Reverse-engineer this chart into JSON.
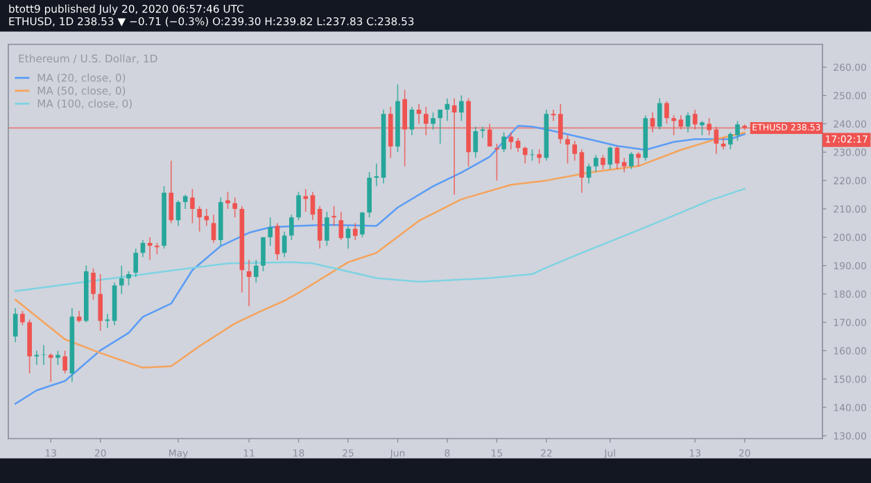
{
  "chart_data": {
    "type": "candlestick",
    "title": "btott9 published July 20, 2020 06:57:46 UTC",
    "subtitle": "ETHUSD, 1D 238.53 ▼ −0.71 (−0.3%) O:239.30 H:239.82 L:237.83 C:238.53",
    "annotations": [
      "Ethereum / U.S. Dollar, 1D",
      "17:02:17"
    ],
    "x": [
      "2020-04-08",
      "2020-04-09",
      "2020-04-10",
      "2020-04-11",
      "2020-04-12",
      "2020-04-13",
      "2020-04-14",
      "2020-04-15",
      "2020-04-16",
      "2020-04-17",
      "2020-04-18",
      "2020-04-19",
      "2020-04-20",
      "2020-04-21",
      "2020-04-22",
      "2020-04-23",
      "2020-04-24",
      "2020-04-25",
      "2020-04-26",
      "2020-04-27",
      "2020-04-28",
      "2020-04-29",
      "2020-04-30",
      "2020-05-01",
      "2020-05-02",
      "2020-05-03",
      "2020-05-04",
      "2020-05-05",
      "2020-05-06",
      "2020-05-07",
      "2020-05-08",
      "2020-05-09",
      "2020-05-10",
      "2020-05-11",
      "2020-05-12",
      "2020-05-13",
      "2020-05-14",
      "2020-05-15",
      "2020-05-16",
      "2020-05-17",
      "2020-05-18",
      "2020-05-19",
      "2020-05-20",
      "2020-05-21",
      "2020-05-22",
      "2020-05-23",
      "2020-05-24",
      "2020-05-25",
      "2020-05-26",
      "2020-05-27",
      "2020-05-28",
      "2020-05-29",
      "2020-05-30",
      "2020-05-31",
      "2020-06-01",
      "2020-06-02",
      "2020-06-03",
      "2020-06-04",
      "2020-06-05",
      "2020-06-06",
      "2020-06-07",
      "2020-06-08",
      "2020-06-09",
      "2020-06-10",
      "2020-06-11",
      "2020-06-12",
      "2020-06-13",
      "2020-06-14",
      "2020-06-15",
      "2020-06-16",
      "2020-06-17",
      "2020-06-18",
      "2020-06-19",
      "2020-06-20",
      "2020-06-21",
      "2020-06-22",
      "2020-06-23",
      "2020-06-24",
      "2020-06-25",
      "2020-06-26",
      "2020-06-27",
      "2020-06-28",
      "2020-06-29",
      "2020-06-30",
      "2020-07-01",
      "2020-07-02",
      "2020-07-03",
      "2020-07-04",
      "2020-07-05",
      "2020-07-06",
      "2020-07-07",
      "2020-07-08",
      "2020-07-09",
      "2020-07-10",
      "2020-07-11",
      "2020-07-12",
      "2020-07-13",
      "2020-07-14",
      "2020-07-15",
      "2020-07-16",
      "2020-07-17",
      "2020-07-18",
      "2020-07-19",
      "2020-07-20"
    ],
    "ohlc": [
      [
        165,
        175,
        163,
        173
      ],
      [
        173,
        174,
        169,
        170
      ],
      [
        170,
        171,
        152,
        158
      ],
      [
        158,
        160,
        155,
        158.5
      ],
      [
        158.5,
        162,
        155,
        158.5
      ],
      [
        158.5,
        159,
        149,
        157.5
      ],
      [
        157.5,
        160,
        155,
        158.5
      ],
      [
        158,
        160,
        152,
        153
      ],
      [
        152,
        175,
        149,
        172
      ],
      [
        172,
        174,
        170,
        170.5
      ],
      [
        170.5,
        190,
        170,
        188
      ],
      [
        187.5,
        189,
        178,
        180
      ],
      [
        180,
        187,
        167,
        170.5
      ],
      [
        170.5,
        173,
        168,
        171
      ],
      [
        170.5,
        184,
        169,
        183
      ],
      [
        183,
        190,
        180,
        185.5
      ],
      [
        185.5,
        188,
        183,
        187
      ],
      [
        187.5,
        196,
        186,
        194.5
      ],
      [
        194.5,
        199,
        193,
        198
      ],
      [
        198,
        200,
        192,
        197
      ],
      [
        197,
        198,
        194,
        196.5
      ],
      [
        197,
        218,
        196,
        215.7
      ],
      [
        215.7,
        227,
        205,
        206
      ],
      [
        206,
        213,
        204,
        212.4
      ],
      [
        212.4,
        215,
        210,
        214.5
      ],
      [
        214,
        217,
        205,
        210
      ],
      [
        210,
        211,
        202,
        207
      ],
      [
        207.5,
        210,
        204,
        206
      ],
      [
        205,
        208,
        198,
        199
      ],
      [
        199,
        214,
        197,
        212.4
      ],
      [
        213,
        216,
        210,
        212
      ],
      [
        212,
        214,
        207,
        210
      ],
      [
        210,
        211,
        180.5,
        188.4
      ],
      [
        188,
        192,
        175.7,
        186
      ],
      [
        186,
        192,
        184,
        190
      ],
      [
        190,
        200,
        188,
        200
      ],
      [
        200,
        207,
        197,
        203.5
      ],
      [
        204,
        205,
        192,
        194
      ],
      [
        194.5,
        202,
        193,
        200.6
      ],
      [
        200.6,
        208,
        199,
        207
      ],
      [
        207,
        216,
        206,
        214.8
      ],
      [
        214.5,
        217,
        209,
        213.5
      ],
      [
        214.8,
        216,
        206,
        208
      ],
      [
        210,
        211,
        196,
        198.8
      ],
      [
        198.8,
        209,
        197,
        207
      ],
      [
        207.5,
        211,
        204,
        207
      ],
      [
        206,
        209,
        199,
        199.7
      ],
      [
        199.7,
        204,
        196,
        203
      ],
      [
        203,
        205,
        199,
        200.5
      ],
      [
        201,
        209,
        200,
        208.7
      ],
      [
        208.7,
        223,
        207,
        221
      ],
      [
        221,
        226,
        218,
        221.5
      ],
      [
        221,
        245,
        219,
        243.5
      ],
      [
        243.5,
        246,
        228,
        232
      ],
      [
        232,
        253.9,
        230,
        248
      ],
      [
        248.7,
        252,
        225,
        238
      ],
      [
        238,
        246,
        236,
        245
      ],
      [
        245,
        247,
        240,
        243.5
      ],
      [
        243.5,
        246,
        236,
        240
      ],
      [
        240,
        244,
        238,
        242
      ],
      [
        242,
        245,
        233,
        245
      ],
      [
        245,
        249,
        241,
        247
      ],
      [
        246.5,
        249,
        215,
        244
      ],
      [
        244,
        250,
        241,
        248
      ],
      [
        248,
        249,
        225,
        230
      ],
      [
        230,
        239,
        228,
        237.4
      ],
      [
        237.5,
        239,
        235,
        238
      ],
      [
        238,
        240,
        232,
        232
      ],
      [
        231.5,
        233,
        220,
        231
      ],
      [
        231,
        237,
        230,
        235.5
      ],
      [
        235.5,
        237,
        231,
        233.6
      ],
      [
        234,
        235,
        230,
        231.5
      ],
      [
        231.5,
        232,
        226,
        229
      ],
      [
        229,
        231,
        227,
        229.2
      ],
      [
        229.3,
        231,
        226,
        228
      ],
      [
        228,
        245,
        227,
        243.5
      ],
      [
        243.5,
        245,
        241,
        243
      ],
      [
        243.5,
        247,
        233,
        234.6
      ],
      [
        234.6,
        236,
        226,
        232.7
      ],
      [
        232.7,
        234,
        227,
        229.4
      ],
      [
        230,
        231,
        215.7,
        221
      ],
      [
        221,
        226,
        219,
        225
      ],
      [
        225,
        229,
        223,
        228
      ],
      [
        228,
        229,
        224,
        225.5
      ],
      [
        225.6,
        232,
        224,
        231.6
      ],
      [
        231.6,
        232,
        224,
        226
      ],
      [
        226.5,
        228,
        223,
        225
      ],
      [
        225,
        230,
        224,
        229.4
      ],
      [
        229.4,
        230,
        225,
        228
      ],
      [
        228,
        243,
        227,
        242
      ],
      [
        242,
        244,
        237,
        239
      ],
      [
        239,
        249,
        238,
        247.3
      ],
      [
        247.3,
        248,
        240,
        242
      ],
      [
        242,
        243,
        236,
        241
      ],
      [
        241.5,
        243,
        238,
        239
      ],
      [
        239,
        244,
        237,
        243
      ],
      [
        243.5,
        245,
        238,
        239.8
      ],
      [
        239.5,
        241,
        236,
        240.5
      ],
      [
        240,
        242,
        236,
        237.8
      ],
      [
        238,
        239,
        229.4,
        233
      ],
      [
        233,
        235,
        231,
        232
      ],
      [
        232.7,
        237,
        231,
        236.4
      ],
      [
        236,
        241,
        234,
        239.8
      ],
      [
        239.3,
        239.82,
        237.83,
        238.53
      ]
    ],
    "colors": [
      "#26a69a",
      "#ef5350",
      "#ef5350",
      "#26a69a",
      "#26a69a",
      "#ef5350",
      "#26a69a",
      "#ef5350",
      "#26a69a",
      "#ef5350",
      "#26a69a",
      "#ef5350",
      "#ef5350",
      "#26a69a",
      "#26a69a",
      "#26a69a",
      "#26a69a",
      "#26a69a",
      "#26a69a",
      "#ef5350",
      "#ef5350",
      "#26a69a",
      "#ef5350",
      "#26a69a",
      "#26a69a",
      "#ef5350",
      "#ef5350",
      "#ef5350",
      "#ef5350",
      "#26a69a",
      "#ef5350",
      "#ef5350",
      "#ef5350",
      "#ef5350",
      "#26a69a",
      "#26a69a",
      "#26a69a",
      "#ef5350",
      "#26a69a",
      "#26a69a",
      "#26a69a",
      "#ef5350",
      "#ef5350",
      "#ef5350",
      "#26a69a",
      "#ef5350",
      "#ef5350",
      "#26a69a",
      "#ef5350",
      "#26a69a",
      "#26a69a",
      "#26a69a",
      "#26a69a",
      "#ef5350",
      "#26a69a",
      "#ef5350",
      "#26a69a",
      "#ef5350",
      "#ef5350",
      "#26a69a",
      "#26a69a",
      "#26a69a",
      "#ef5350",
      "#26a69a",
      "#ef5350",
      "#26a69a",
      "#26a69a",
      "#ef5350",
      "#ef5350",
      "#26a69a",
      "#ef5350",
      "#ef5350",
      "#ef5350",
      "#26a69a",
      "#ef5350",
      "#26a69a",
      "#ef5350",
      "#ef5350",
      "#ef5350",
      "#ef5350",
      "#ef5350",
      "#26a69a",
      "#26a69a",
      "#ef5350",
      "#26a69a",
      "#ef5350",
      "#ef5350",
      "#26a69a",
      "#ef5350",
      "#26a69a",
      "#ef5350",
      "#26a69a",
      "#ef5350",
      "#ef5350",
      "#ef5350",
      "#26a69a",
      "#ef5350",
      "#26a69a",
      "#ef5350",
      "#ef5350",
      "#ef5350",
      "#26a69a",
      "#26a69a",
      "#ef5350"
    ],
    "series": [
      {
        "name": "MA (20, close, 0)",
        "type": "line",
        "color": "#5b9cf6",
        "x": [
          "2020-04-08",
          "2020-04-11",
          "2020-04-15",
          "2020-04-20",
          "2020-04-24",
          "2020-04-26",
          "2020-04-30",
          "2020-05-03",
          "2020-05-07",
          "2020-05-11",
          "2020-05-14",
          "2020-05-18",
          "2020-05-22",
          "2020-05-29",
          "2020-06-01",
          "2020-06-06",
          "2020-06-10",
          "2020-06-14",
          "2020-06-18",
          "2020-06-20",
          "2020-06-22",
          "2020-06-28",
          "2020-07-02",
          "2020-07-06",
          "2020-07-10",
          "2020-07-13",
          "2020-07-18",
          "2020-07-20"
        ],
        "values": [
          141.3,
          146,
          149.3,
          160.1,
          166.3,
          171.9,
          176.6,
          188.4,
          196.9,
          201.6,
          203.5,
          204,
          204.4,
          204,
          210.5,
          218,
          222.8,
          228.4,
          239.3,
          239,
          238,
          234.6,
          232.2,
          230.8,
          233.6,
          234.6,
          234.6,
          236.4
        ]
      },
      {
        "name": "MA (50, close, 0)",
        "type": "line",
        "color": "#f5a35c",
        "x": [
          "2020-04-08",
          "2020-04-15",
          "2020-04-20",
          "2020-04-26",
          "2020-04-30",
          "2020-05-04",
          "2020-05-09",
          "2020-05-13",
          "2020-05-16",
          "2020-05-18",
          "2020-05-25",
          "2020-05-29",
          "2020-06-04",
          "2020-06-10",
          "2020-06-17",
          "2020-06-22",
          "2020-06-28",
          "2020-07-05",
          "2020-07-11",
          "2020-07-16",
          "2020-07-20"
        ],
        "values": [
          178,
          164,
          159.2,
          154,
          154.5,
          161.6,
          169.6,
          174.3,
          177.6,
          180.4,
          191.2,
          194.5,
          205.8,
          213.4,
          218.5,
          220,
          222.8,
          225.1,
          230.8,
          234.6,
          236.9
        ]
      },
      {
        "name": "MA (100, close, 0)",
        "type": "line",
        "color": "#7fd3e3",
        "x": [
          "2020-04-08",
          "2020-04-20",
          "2020-05-08",
          "2020-05-17",
          "2020-05-20",
          "2020-05-29",
          "2020-06-04",
          "2020-06-14",
          "2020-06-20",
          "2020-06-22",
          "2020-06-27",
          "2020-07-05",
          "2020-07-11",
          "2020-07-15",
          "2020-07-20"
        ],
        "values": [
          181,
          185,
          190.8,
          191.2,
          190.8,
          185.6,
          184.3,
          185.6,
          187,
          189.3,
          194.5,
          202.5,
          208.7,
          212.9,
          217.1
        ]
      }
    ],
    "ref_lines": [
      {
        "axis": "y",
        "value": 238.53,
        "label": "ETHUSD 238.53",
        "color": "#ef5350"
      }
    ],
    "legend": "top left",
    "xlim": [
      "2020-04-07",
      "2020-07-31"
    ],
    "xticks": [
      {
        "value": "2020-04-13",
        "label": "13"
      },
      {
        "value": "2020-04-20",
        "label": "20"
      },
      {
        "value": "2020-05-01",
        "label": "May"
      },
      {
        "value": "2020-05-11",
        "label": "11"
      },
      {
        "value": "2020-05-18",
        "label": "18"
      },
      {
        "value": "2020-05-25",
        "label": "25"
      },
      {
        "value": "2020-06-01",
        "label": "Jun"
      },
      {
        "value": "2020-06-08",
        "label": "8"
      },
      {
        "value": "2020-06-15",
        "label": "15"
      },
      {
        "value": "2020-06-22",
        "label": "22"
      },
      {
        "value": "2020-07-01",
        "label": "Jul"
      },
      {
        "value": "2020-07-13",
        "label": "13"
      },
      {
        "value": "2020-07-20",
        "label": "20"
      }
    ],
    "ylim": [
      129,
      268
    ],
    "yticks": [
      {
        "value": 130,
        "label": "130.00"
      },
      {
        "value": 140,
        "label": "140.00"
      },
      {
        "value": 150,
        "label": "150.00"
      },
      {
        "value": 160,
        "label": "160.00"
      },
      {
        "value": 170,
        "label": "170.00"
      },
      {
        "value": 180,
        "label": "180.00"
      },
      {
        "value": 190,
        "label": "190.00"
      },
      {
        "value": 200,
        "label": "200.00"
      },
      {
        "value": 210,
        "label": "210.00"
      },
      {
        "value": 220,
        "label": "220.00"
      },
      {
        "value": 230,
        "label": "230.00"
      },
      {
        "value": 240,
        "label": "240.00"
      },
      {
        "value": 250,
        "label": "250.00"
      },
      {
        "value": 260,
        "label": "260.00"
      }
    ]
  }
}
